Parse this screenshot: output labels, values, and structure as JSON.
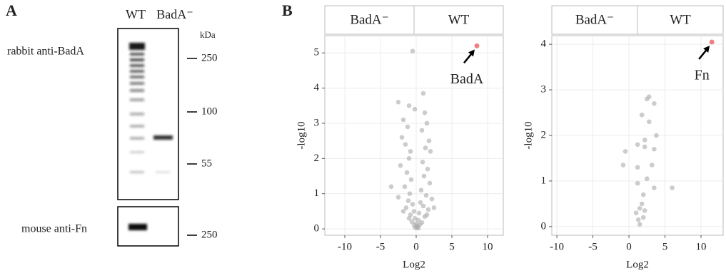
{
  "panels": {
    "a": "A",
    "b": "B"
  },
  "blot": {
    "lanes": [
      "WT",
      "BadA⁻"
    ],
    "unit": "kDa",
    "rows": [
      "rabbit anti-BadA",
      "mouse anti-Fn"
    ],
    "markers": [
      "250",
      "100",
      "55",
      "250"
    ]
  },
  "chart_data": [
    {
      "type": "scatter",
      "facets": [
        "BadA⁻",
        "WT"
      ],
      "x_label": "Log2",
      "y_label": "-log10",
      "color": "#aaaaaa",
      "grid": true,
      "xlim": [
        -12.8,
        12.2
      ],
      "ylim": [
        -0.18,
        5.49
      ],
      "xticks": [
        -10,
        -5,
        0,
        5,
        10
      ],
      "yticks": [
        0,
        1,
        2,
        3,
        4,
        5
      ],
      "x": [
        -0.5,
        -2.5,
        1,
        -1,
        -0.2,
        1.2,
        -1.8,
        1.5,
        -1.2,
        0.8,
        -2,
        1.8,
        -1.5,
        1.3,
        -0.8,
        2,
        -1,
        0.9,
        -2.2,
        1.6,
        -1.3,
        1.1,
        -0.7,
        1.9,
        -3.5,
        -1.6,
        0.7,
        -0.9,
        1.4,
        -2.5,
        2.2,
        -1.1,
        0.6,
        -0.5,
        1.0,
        -1.4,
        1.7,
        -0.3,
        0.4,
        -0.8,
        1.2,
        -0.2,
        0.3,
        -0.6,
        0.8,
        0,
        -0.3,
        0.2,
        0.1,
        -0.1,
        0.5,
        -1.0,
        1.5,
        -1.8,
        2.5,
        0.3
      ],
      "values": [
        5.05,
        3.6,
        3.85,
        3.5,
        3.4,
        3.3,
        3.1,
        3.0,
        2.9,
        2.8,
        2.6,
        2.5,
        2.4,
        2.3,
        2.2,
        2.2,
        2.0,
        1.9,
        1.8,
        1.7,
        1.6,
        1.5,
        1.4,
        1.3,
        1.2,
        1.2,
        1.1,
        1.0,
        0.95,
        0.9,
        0.85,
        0.8,
        0.75,
        0.7,
        0.65,
        0.6,
        0.55,
        0.5,
        0.45,
        0.4,
        0.35,
        0.3,
        0.25,
        0.2,
        0.18,
        0.15,
        0.1,
        0.08,
        0.05,
        0.03,
        0.12,
        0.3,
        0.4,
        0.5,
        0.6,
        0.02
      ],
      "annotation": {
        "text": "BadA",
        "x": 8.5,
        "y": 5.2,
        "color": "#f08080"
      }
    },
    {
      "type": "scatter",
      "facets": [
        "BadA⁻",
        "WT"
      ],
      "x_label": "Log2",
      "y_label": "-log10",
      "color": "#aaaaaa",
      "grid": true,
      "xlim": [
        -10.7,
        13.07
      ],
      "ylim": [
        -0.19,
        4.19
      ],
      "xticks": [
        -10,
        -5,
        0,
        5,
        10
      ],
      "yticks": [
        0,
        1,
        2,
        3,
        4
      ],
      "x": [
        2.8,
        2.5,
        3.5,
        1.8,
        2.8,
        3.8,
        2.2,
        -0.5,
        1.2,
        2.2,
        3.5,
        -0.8,
        1.2,
        3.2,
        2.5,
        1.2,
        3.5,
        6,
        2.0,
        1.8,
        1.5,
        2.2,
        1.0,
        2.0,
        1.3,
        1.5
      ],
      "values": [
        2.85,
        2.8,
        2.7,
        2.45,
        2.3,
        2.0,
        1.9,
        1.65,
        1.8,
        1.75,
        1.7,
        1.35,
        1.3,
        1.35,
        1.05,
        0.95,
        0.85,
        0.85,
        0.7,
        0.5,
        0.4,
        0.35,
        0.3,
        0.2,
        0.15,
        0.05
      ],
      "annotation": {
        "text": "Fn",
        "x": 11.5,
        "y": 4.05,
        "color": "#f08080"
      }
    }
  ]
}
